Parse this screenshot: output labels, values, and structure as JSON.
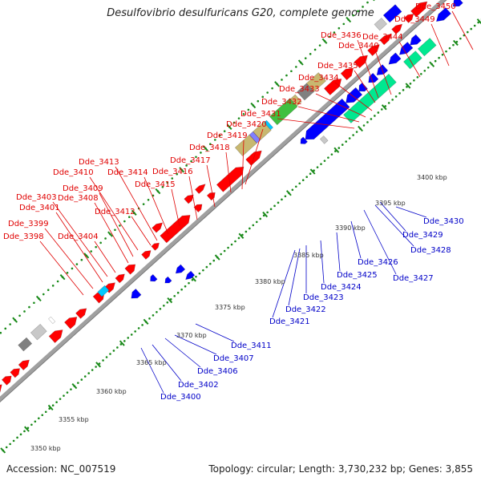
{
  "title": "Desulfovibrio desulfuricans G20, complete genome",
  "accession_label": "Accession: NC_007519",
  "summary": "Topology: circular; Length: 3,730,232 bp; Genes: 3,855",
  "colors": {
    "forward": "#ff0000",
    "reverse": "#0000ff",
    "label_forward": "#e00000",
    "label_reverse": "#0000c8",
    "backbone": "#a0a0a0",
    "tick": "#1a8a1a"
  },
  "scale_labels": [
    "3350 kbp",
    "3355 kbp",
    "3360 kbp",
    "3365 kbp",
    "3370 kbp",
    "3375 kbp",
    "3380 kbp",
    "3385 kbp",
    "3390 kbp",
    "3395 kbp",
    "3400 kbp"
  ],
  "top_labels": [
    "Dde_3398",
    "Dde_3399",
    "Dde_3401",
    "Dde_3403",
    "Dde_3404",
    "Dde_3408",
    "Dde_3409",
    "Dde_3410",
    "Dde_3412",
    "Dde_3413",
    "Dde_3414",
    "Dde_3415",
    "Dde_3416",
    "Dde_3417",
    "Dde_3418",
    "Dde_3419",
    "Dde_3420",
    "Dde_3431",
    "Dde_3432",
    "Dde_3433",
    "Dde_3434",
    "Dde_3435",
    "Dde_3436",
    "Dde_3440",
    "Dde_3444",
    "Dde_3449",
    "Dde_3450"
  ],
  "bottom_labels": [
    "Dde_3400",
    "Dde_3402",
    "Dde_3406",
    "Dde_3407",
    "Dde_3411",
    "Dde_3421",
    "Dde_3422",
    "Dde_3423",
    "Dde_3424",
    "Dde_3425",
    "Dde_3426",
    "Dde_3427",
    "Dde_3428",
    "Dde_3429",
    "Dde_3430"
  ]
}
